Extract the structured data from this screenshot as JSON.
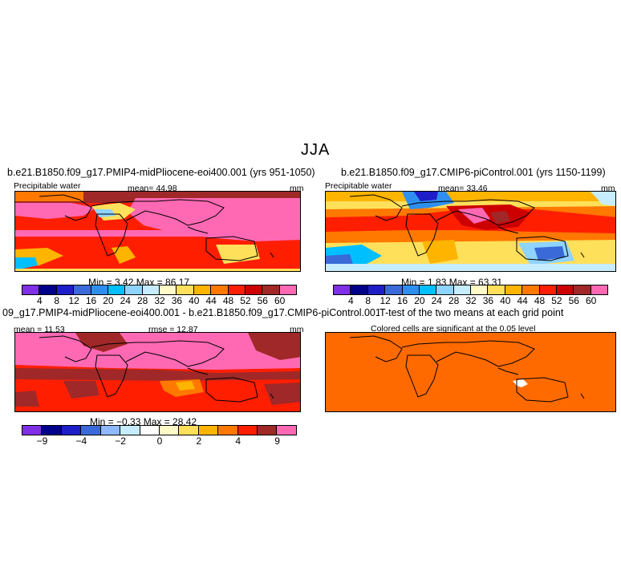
{
  "figure": {
    "season": "JJA",
    "panels": [
      {
        "id": "top-left",
        "title": "b.e21.B1850.f09_g17.PMIP4-midPliocene-eoi400.001 (yrs 951-1050)",
        "left_label": "Precipitable water",
        "center_label": "mean=  44.98",
        "right_label": "mm",
        "stats": "Min =    3.42  Max =   86.17",
        "colorbar_labels": [
          "4",
          "8",
          "12",
          "16",
          "20",
          "24",
          "28",
          "32",
          "36",
          "40",
          "44",
          "48",
          "52",
          "56",
          "60"
        ]
      },
      {
        "id": "top-right",
        "title": "b.e21.B1850.f09_g17.CMIP6-piControl.001 (yrs 1150-1199)",
        "left_label": "Precipitable water",
        "center_label": "mean=  33.46",
        "right_label": "mm",
        "stats": "Min =    1.83  Max =   63.31",
        "colorbar_labels": [
          "4",
          "8",
          "12",
          "16",
          "20",
          "24",
          "28",
          "32",
          "36",
          "40",
          "44",
          "48",
          "52",
          "56",
          "60"
        ]
      },
      {
        "id": "bottom-left",
        "title": "09_g17.PMIP4-midPliocene-eoi400.001 - b.e21.B1850.f09_g17.CMIP6-piControl.001",
        "left_label": "mean =  11.53",
        "center_label": "rmse =  12.87",
        "right_label": "mm",
        "stats": "Min =  −0.33  Max =   28.42",
        "colorbar_labels": [
          "−9",
          "−4",
          "−2",
          "0",
          "2",
          "4",
          "9"
        ]
      },
      {
        "id": "bottom-right",
        "title": "T-test of the two means at each grid point",
        "left_label": "",
        "center_label": "Colored cells are significant at the 0.05 level",
        "right_label": ""
      }
    ]
  },
  "chart_data": [
    {
      "type": "heatmap",
      "title": "b.e21.B1850.f09_g17.PMIP4-midPliocene-eoi400.001 (yrs 951-1050)",
      "variable": "Precipitable water",
      "units": "mm",
      "mean": 44.98,
      "min": 3.42,
      "max": 86.17,
      "contour_levels": [
        4,
        8,
        12,
        16,
        20,
        24,
        28,
        32,
        36,
        40,
        44,
        48,
        52,
        56,
        60
      ],
      "colors": [
        "#7f2fe6",
        "#00008b",
        "#1e1ec8",
        "#3a6ad8",
        "#2f8ff0",
        "#00bfff",
        "#8fd3ff",
        "#c6ecff",
        "#fffac8",
        "#ffe05a",
        "#ffb400",
        "#ff7800",
        "#ff1e00",
        "#cd0000",
        "#a02828",
        "#ff69b4"
      ]
    },
    {
      "type": "heatmap",
      "title": "b.e21.B1850.f09_g17.CMIP6-piControl.001 (yrs 1150-1199)",
      "variable": "Precipitable water",
      "units": "mm",
      "mean": 33.46,
      "min": 1.83,
      "max": 63.31,
      "contour_levels": [
        4,
        8,
        12,
        16,
        20,
        24,
        28,
        32,
        36,
        40,
        44,
        48,
        52,
        56,
        60
      ],
      "colors": [
        "#7f2fe6",
        "#00008b",
        "#1e1ec8",
        "#3a6ad8",
        "#2f8ff0",
        "#00bfff",
        "#8fd3ff",
        "#c6ecff",
        "#fffac8",
        "#ffe05a",
        "#ffb400",
        "#ff7800",
        "#ff1e00",
        "#cd0000",
        "#a02828",
        "#ff69b4"
      ]
    },
    {
      "type": "heatmap",
      "title": "09_g17.PMIP4-midPliocene-eoi400.001 - b.e21.B1850.f09_g17.CMIP6-piControl.001",
      "units": "mm",
      "mean": 11.53,
      "rmse": 12.87,
      "min": -0.33,
      "max": 28.42,
      "contour_levels": [
        -9,
        -6,
        -4,
        -3,
        -2,
        -1,
        0,
        1,
        2,
        3,
        4,
        6,
        9
      ],
      "colorbar_labels": [
        -9,
        -4,
        -2,
        0,
        2,
        4,
        9
      ],
      "colors": [
        "#7f2fe6",
        "#00008b",
        "#1e1ec8",
        "#3a6ad8",
        "#8fb8ff",
        "#c6ecff",
        "#ffffff",
        "#fffac8",
        "#ffe05a",
        "#ffb400",
        "#ff7800",
        "#ff1e00",
        "#a02828",
        "#ff69b4"
      ]
    },
    {
      "type": "heatmap",
      "title": "T-test of the two means at each grid point",
      "subtitle": "Colored cells are significant at the 0.05 level",
      "colors": [
        "#ff6a00",
        "#ffffff"
      ]
    }
  ]
}
